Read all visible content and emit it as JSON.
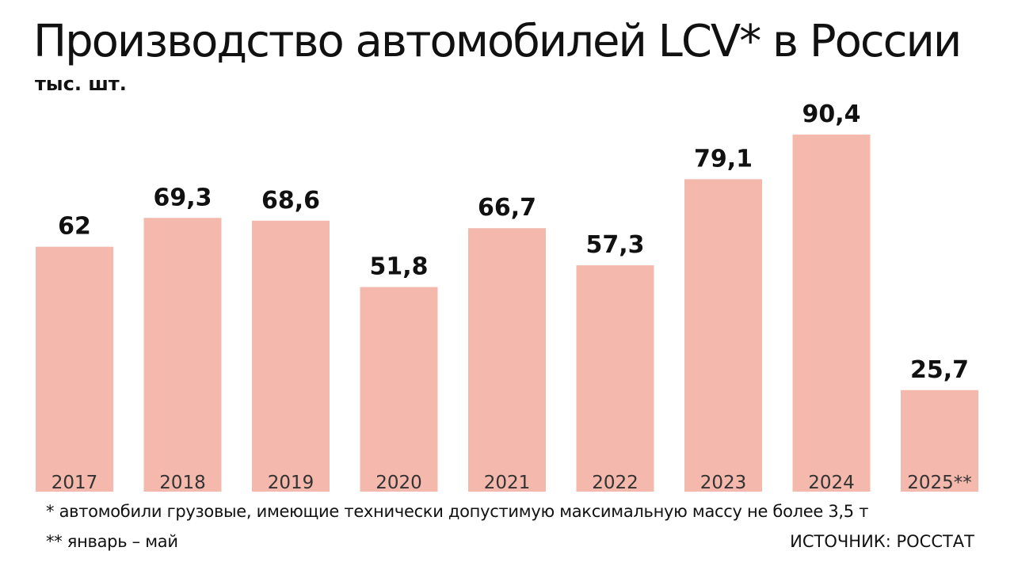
{
  "chart_data": {
    "type": "bar",
    "title": "Производство автомобилей LCV* в России",
    "ylabel": "тыс. шт.",
    "categories": [
      "2017",
      "2018",
      "2019",
      "2020",
      "2021",
      "2022",
      "2023",
      "2024",
      "2025**"
    ],
    "values": [
      62,
      69.3,
      68.6,
      51.8,
      66.7,
      57.3,
      79.1,
      90.4,
      25.7
    ],
    "value_labels": [
      "62",
      "69,3",
      "68,6",
      "51,8",
      "66,7",
      "57,3",
      "79,1",
      "90,4",
      "25,7"
    ],
    "ylim": [
      0,
      90.4
    ],
    "grid": false,
    "colors": {
      "bar": "#f4b8ad",
      "text": "#111111"
    }
  },
  "footnotes": {
    "asterisk": "* автомобили грузовые, имеющие технически допустимую максимальную массу не более 3,5 т",
    "double_asterisk": "** январь – май"
  },
  "source": "ИСТОЧНИК: РОССТАТ"
}
